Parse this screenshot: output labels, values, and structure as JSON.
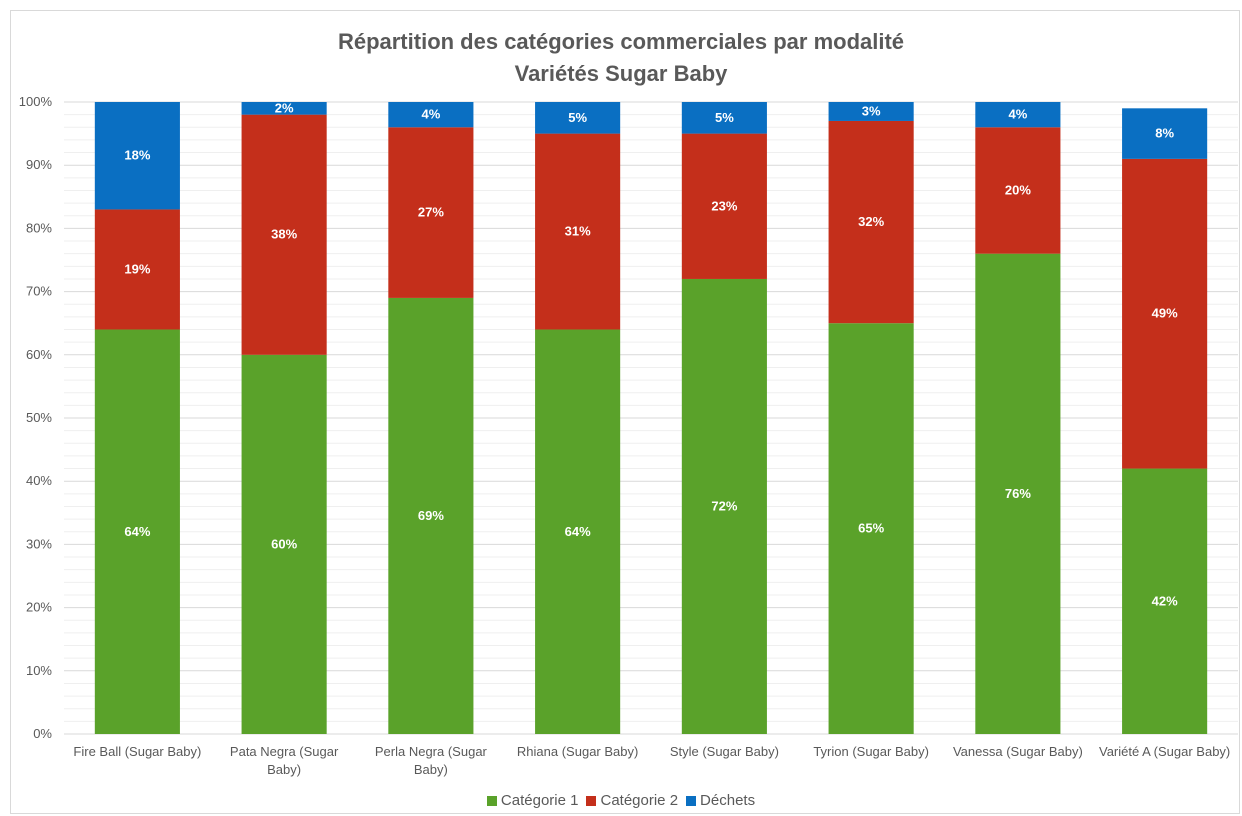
{
  "chart_data": {
    "type": "bar",
    "stacked": true,
    "title": "Répartition des catégories commerciales par modalité",
    "subtitle": "Variétés Sugar Baby",
    "categories": [
      "Fire Ball (Sugar Baby)",
      "Pata Negra (Sugar Baby)",
      "Perla Negra (Sugar Baby)",
      "Rhiana (Sugar Baby)",
      "Style (Sugar Baby)",
      "Tyrion (Sugar Baby)",
      "Vanessa (Sugar Baby)",
      "Variété A (Sugar Baby)"
    ],
    "series": [
      {
        "name": "Catégorie 1",
        "color": "#5aa22a",
        "values": [
          64,
          60,
          69,
          64,
          72,
          65,
          76,
          42
        ],
        "labels": [
          "64%",
          "60%",
          "69%",
          "64%",
          "72%",
          "65%",
          "76%",
          "42%"
        ]
      },
      {
        "name": "Catégorie 2",
        "color": "#c42f1b",
        "values": [
          19,
          38,
          27,
          31,
          23,
          32,
          20,
          49
        ],
        "labels": [
          "19%",
          "38%",
          "27%",
          "31%",
          "23%",
          "32%",
          "20%",
          "49%"
        ]
      },
      {
        "name": "Déchets",
        "color": "#0a6fc2",
        "values": [
          18,
          2,
          4,
          5,
          5,
          3,
          4,
          8
        ],
        "labels": [
          "18%",
          "2%",
          "4%",
          "5%",
          "5%",
          "3%",
          "4%",
          "8%"
        ]
      }
    ],
    "yticks": [
      "0%",
      "10%",
      "20%",
      "30%",
      "40%",
      "50%",
      "60%",
      "70%",
      "80%",
      "90%",
      "100%"
    ],
    "ylim": [
      0,
      100
    ],
    "grid": true,
    "legend_position": "bottom"
  }
}
